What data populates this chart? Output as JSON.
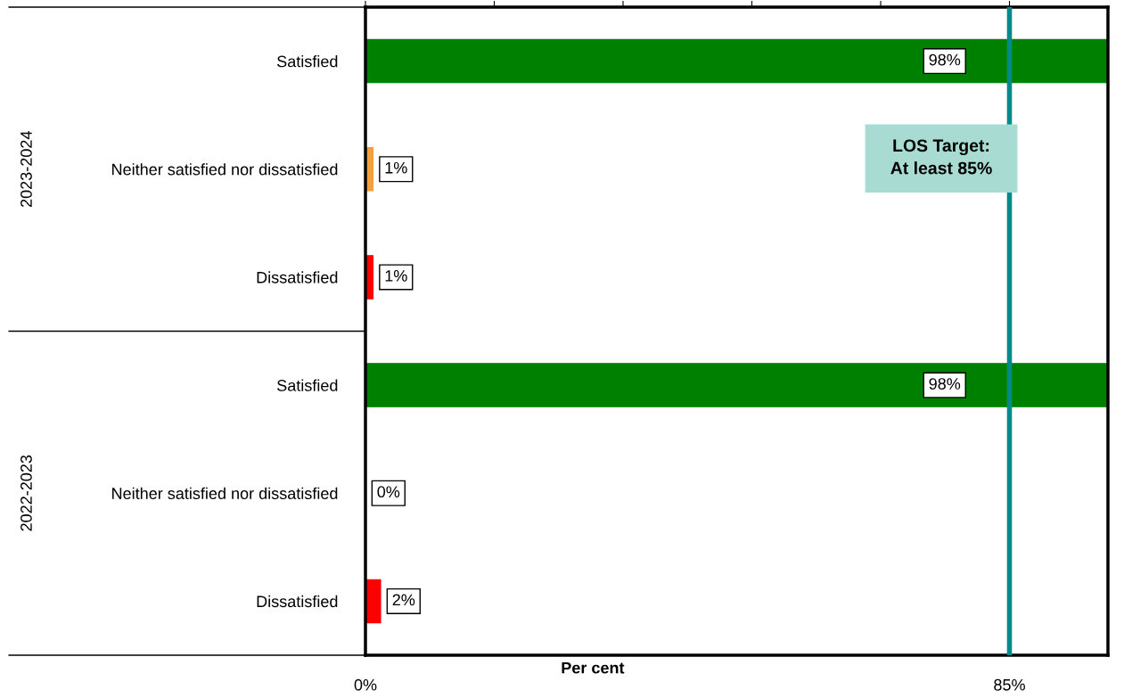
{
  "chart_data": {
    "type": "bar",
    "orientation": "horizontal",
    "xlabel": "Per cent",
    "categories": [
      "Satisfied",
      "Neither satisfied nor dissatisfied",
      "Dissatisfied",
      "Satisfied",
      "Neither satisfied nor dissatisfied",
      "Dissatisfied"
    ],
    "values": [
      98,
      1,
      1,
      98,
      0,
      2
    ],
    "colors": [
      "#008000",
      "#f4a13c",
      "#ff0000",
      "#008000",
      "#f4a13c",
      "#ff0000"
    ],
    "value_labels": [
      "98%",
      "1%",
      "1%",
      "98%",
      "0%",
      "2%"
    ],
    "xlim": [
      0,
      98
    ],
    "xticks": [
      {
        "value": 0,
        "label": "0%"
      },
      {
        "value": 17,
        "label": null
      },
      {
        "value": 34,
        "label": null
      },
      {
        "value": 51,
        "label": null
      },
      {
        "value": 68,
        "label": null
      },
      {
        "value": 85,
        "label": "85%"
      }
    ],
    "ref_lines": [
      {
        "axis": "x",
        "value": 85,
        "label": "LOS Target: At least 85%",
        "color": "#008b8b"
      }
    ],
    "annotations": [
      "2023-2024",
      "2022-2023"
    ],
    "grid": false
  }
}
